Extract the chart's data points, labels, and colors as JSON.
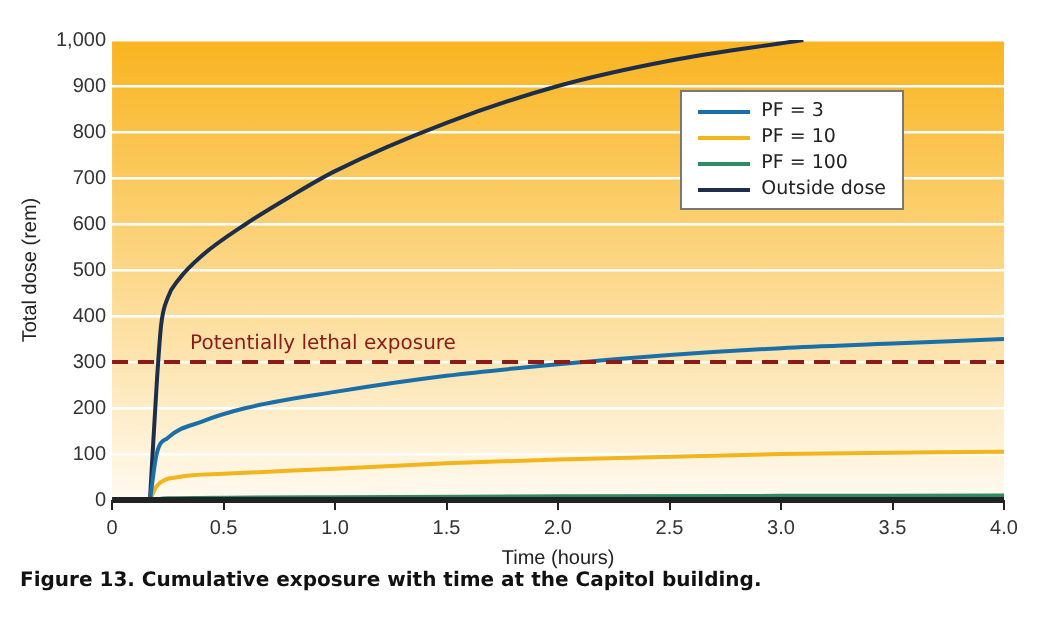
{
  "chart_data": {
    "type": "line",
    "xlabel": "Time (hours)",
    "ylabel": "Total dose (rem)",
    "xlim": [
      0,
      4
    ],
    "xticks": [
      0,
      0.5,
      {
        "value": 1,
        "label": "1.0"
      },
      1.5,
      {
        "value": 2,
        "label": "2.0"
      },
      2.5,
      {
        "value": 3,
        "label": "3.0"
      },
      3.5,
      {
        "value": 4,
        "label": "4.0"
      }
    ],
    "ylim": [
      0,
      1000
    ],
    "yticks": [
      0,
      100,
      200,
      300,
      400,
      500,
      600,
      700,
      800,
      900,
      {
        "value": 1000,
        "label": "1,000"
      }
    ],
    "grid": "y",
    "legend": "top right",
    "marker": "none",
    "line_style": "solid",
    "series": [
      {
        "name": "PF = 3",
        "color": "#1a6fa8",
        "x": [
          0.17,
          0.2,
          0.25,
          0.4,
          0.6,
          1.0,
          1.5,
          2.0,
          2.5,
          3.0,
          3.5,
          4.0
        ],
        "values": [
          0,
          100,
          135,
          170,
          200,
          235,
          270,
          295,
          315,
          330,
          340,
          350
        ]
      },
      {
        "name": "PF = 10",
        "color": "#f2b51c",
        "x": [
          0.17,
          0.2,
          0.3,
          0.5,
          1.0,
          1.5,
          2.0,
          3.0,
          4.0
        ],
        "values": [
          0,
          30,
          50,
          57,
          68,
          80,
          88,
          100,
          105
        ]
      },
      {
        "name": "PF = 100",
        "color": "#2e8b63",
        "x": [
          0.17,
          0.25,
          1.0,
          2.0,
          3.0,
          4.0
        ],
        "values": [
          0,
          4,
          6,
          8,
          9,
          10
        ]
      },
      {
        "name": "Outside dose",
        "color": "#1c2e4a",
        "x": [
          0.17,
          0.2,
          0.22,
          0.25,
          0.3,
          0.4,
          0.6,
          0.8,
          1.0,
          1.5,
          2.0,
          2.5,
          3.1
        ],
        "values": [
          0,
          250,
          380,
          440,
          480,
          530,
          600,
          660,
          715,
          820,
          900,
          955,
          1000
        ]
      }
    ],
    "ref_lines": [
      {
        "axis": "y",
        "value": 300,
        "label": "Potentially lethal exposure",
        "color": "#8b1a1a",
        "line_style": "dashed"
      }
    ],
    "annotations": [
      "Figure 13. Cumulative exposure with time at the Capitol building."
    ]
  }
}
